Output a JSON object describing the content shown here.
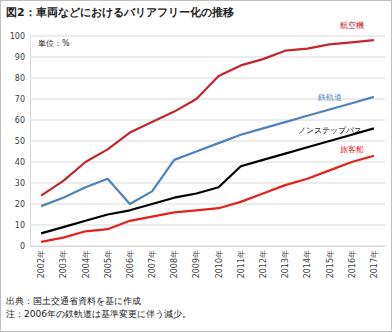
{
  "chart_data": {
    "type": "line",
    "title": "図2：車両などにおけるバリアフリー化の推移",
    "ylabel": "単位：%",
    "categories": [
      "2002年",
      "2003年",
      "2004年",
      "2005年",
      "2006年",
      "2007年",
      "2008年",
      "2009年",
      "2010年",
      "2011年",
      "2012年",
      "2013年",
      "2014年",
      "2015年",
      "2016年",
      "2017年"
    ],
    "series": [
      {
        "name": "航空機",
        "color": "#c0272d",
        "values": [
          24,
          31,
          40,
          46,
          54,
          59,
          64,
          70,
          81,
          86,
          89,
          93,
          94,
          96,
          97,
          98
        ]
      },
      {
        "name": "鉄軌道",
        "color": "#4f81bd",
        "values": [
          19,
          23,
          28,
          32,
          20,
          26,
          41,
          45,
          49,
          53,
          56,
          59,
          62,
          65,
          68,
          71
        ]
      },
      {
        "name": "ノンステップバス",
        "color": "#000000",
        "values": [
          6,
          9,
          12,
          15,
          17,
          20,
          23,
          25,
          28,
          38,
          41,
          44,
          47,
          50,
          53,
          56
        ]
      },
      {
        "name": "旅客船",
        "color": "#e3221c",
        "values": [
          2,
          4,
          7,
          8,
          12,
          14,
          16,
          17,
          18,
          21,
          25,
          29,
          32,
          36,
          40,
          43
        ]
      }
    ],
    "ylim": [
      0,
      100
    ],
    "yticks": [
      0,
      10,
      20,
      30,
      40,
      50,
      60,
      70,
      80,
      90,
      100
    ],
    "grid": true,
    "annotations": [
      "出典：国土交通省資料を基に作成",
      "注：2006年の鉄軌道は基準変更に伴う減少。"
    ]
  }
}
